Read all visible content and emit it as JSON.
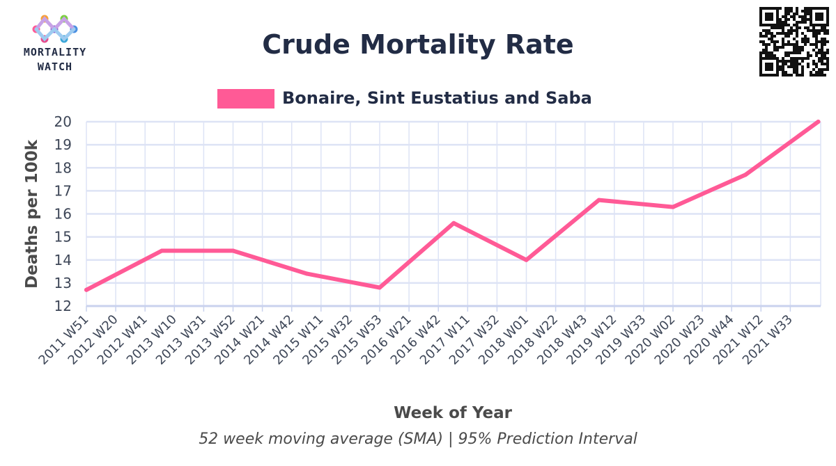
{
  "logo": {
    "line1": "MORTALITY",
    "line2": "WATCH"
  },
  "colors": {
    "series": "#ff5a96",
    "grid": "#dde3f5",
    "axis": "#c9d2ee",
    "text": "#222c45"
  },
  "chart_data": {
    "type": "line",
    "title": "Crude Mortality Rate",
    "subtitle": "52 week moving average (SMA) | 95% Prediction Interval",
    "xlabel": "Week of Year",
    "ylabel": "Deaths per 100k",
    "ylim": [
      12,
      20
    ],
    "yticks": [
      12,
      13,
      14,
      15,
      16,
      17,
      18,
      19,
      20
    ],
    "grid": true,
    "legend_position": "top-center",
    "categories": [
      "2011 W51",
      "2012 W20",
      "2012 W41",
      "2013 W10",
      "2013 W31",
      "2013 W52",
      "2014 W21",
      "2014 W42",
      "2015 W11",
      "2015 W32",
      "2015 W53",
      "2016 W21",
      "2016 W42",
      "2017 W11",
      "2017 W32",
      "2018 W01",
      "2018 W22",
      "2018 W43",
      "2019 W12",
      "2019 W33",
      "2020 W02",
      "2020 W23",
      "2020 W44",
      "2021 W12",
      "2021 W33"
    ],
    "series": [
      {
        "name": "Bonaire, Sint Eustatius and Saba",
        "points": [
          {
            "x": "2011 W51",
            "y": 12.7
          },
          {
            "x": "2013 W01",
            "y": 14.4
          },
          {
            "x": "2013 W52",
            "y": 14.4
          },
          {
            "x": "2015 W01",
            "y": 13.4
          },
          {
            "x": "2015 W53",
            "y": 12.8
          },
          {
            "x": "2017 W01",
            "y": 15.6
          },
          {
            "x": "2018 W01",
            "y": 14.0
          },
          {
            "x": "2019 W01",
            "y": 16.6
          },
          {
            "x": "2020 W02",
            "y": 16.3
          },
          {
            "x": "2021 W01",
            "y": 17.7
          },
          {
            "x": "2022 W01",
            "y": 20.0
          }
        ]
      }
    ]
  }
}
